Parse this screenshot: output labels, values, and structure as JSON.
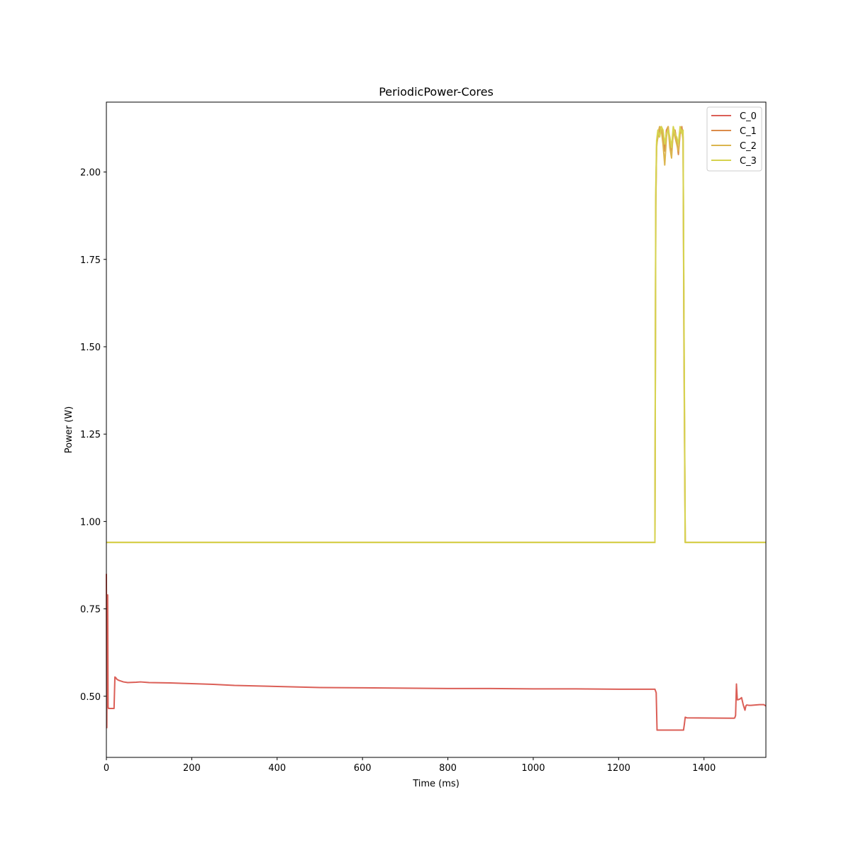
{
  "chart_data": {
    "type": "line",
    "title": "PeriodicPower-Cores",
    "xlabel": "Time (ms)",
    "ylabel": "Power (W)",
    "xlim": [
      0,
      1545
    ],
    "ylim": [
      0.325,
      2.2
    ],
    "xticks": [
      0,
      200,
      400,
      600,
      800,
      1000,
      1200,
      1400
    ],
    "yticks": [
      0.5,
      0.75,
      1.0,
      1.25,
      1.5,
      1.75,
      2.0
    ],
    "ytick_labels": [
      "0.50",
      "0.75",
      "1.00",
      "1.25",
      "1.50",
      "1.75",
      "2.00"
    ],
    "grid": false,
    "legend_position": "top-right",
    "series": [
      {
        "name": "C_0",
        "color": "#db5f57",
        "x": [
          0,
          1,
          2,
          3,
          4,
          5,
          6,
          8,
          10,
          12,
          16,
          18,
          20,
          22,
          25,
          30,
          40,
          50,
          70,
          80,
          100,
          150,
          200,
          250,
          300,
          400,
          500,
          600,
          700,
          800,
          900,
          1000,
          1100,
          1200,
          1285,
          1288,
          1290,
          1352,
          1354,
          1356,
          1360,
          1470,
          1472,
          1474,
          1476,
          1478,
          1480,
          1484,
          1488,
          1492,
          1496,
          1498,
          1500,
          1505,
          1510,
          1520,
          1530,
          1540,
          1545
        ],
        "y": [
          0.85,
          0.41,
          0.79,
          0.79,
          0.47,
          0.465,
          0.465,
          0.465,
          0.465,
          0.465,
          0.465,
          0.465,
          0.555,
          0.553,
          0.548,
          0.545,
          0.541,
          0.539,
          0.54,
          0.541,
          0.539,
          0.538,
          0.536,
          0.534,
          0.531,
          0.528,
          0.525,
          0.524,
          0.523,
          0.522,
          0.522,
          0.521,
          0.521,
          0.52,
          0.52,
          0.51,
          0.403,
          0.403,
          0.42,
          0.44,
          0.438,
          0.437,
          0.438,
          0.445,
          0.535,
          0.49,
          0.49,
          0.492,
          0.496,
          0.475,
          0.46,
          0.472,
          0.475,
          0.474,
          0.474,
          0.475,
          0.476,
          0.476,
          0.472
        ]
      },
      {
        "name": "C_1",
        "color": "#db8c4a",
        "x": [
          0,
          1285,
          1287,
          1289,
          1292,
          1296,
          1300,
          1304,
          1308,
          1312,
          1316,
          1320,
          1324,
          1328,
          1332,
          1336,
          1340,
          1344,
          1348,
          1351,
          1353,
          1356,
          1545
        ],
        "y": [
          0.94,
          0.94,
          1.9,
          2.08,
          2.1,
          2.12,
          2.13,
          2.11,
          2.06,
          2.12,
          2.13,
          2.09,
          2.06,
          2.11,
          2.12,
          2.09,
          2.05,
          2.11,
          2.13,
          2.1,
          1.5,
          0.94,
          0.94
        ]
      },
      {
        "name": "C_2",
        "color": "#dbb54e",
        "x": [
          0,
          1285,
          1287,
          1289,
          1292,
          1296,
          1300,
          1304,
          1308,
          1312,
          1316,
          1320,
          1324,
          1328,
          1332,
          1336,
          1340,
          1344,
          1348,
          1351,
          1353,
          1356,
          1545
        ],
        "y": [
          0.94,
          0.94,
          1.92,
          2.07,
          2.11,
          2.13,
          2.12,
          2.08,
          2.02,
          2.1,
          2.13,
          2.07,
          2.04,
          2.12,
          2.1,
          2.08,
          2.06,
          2.12,
          2.12,
          2.09,
          1.55,
          0.94,
          0.94
        ]
      },
      {
        "name": "C_3",
        "color": "#d6d34f",
        "x": [
          0,
          1285,
          1287,
          1289,
          1292,
          1296,
          1300,
          1304,
          1308,
          1312,
          1316,
          1320,
          1324,
          1328,
          1332,
          1336,
          1340,
          1344,
          1348,
          1351,
          1353,
          1356,
          1545
        ],
        "y": [
          0.94,
          0.94,
          1.95,
          2.09,
          2.12,
          2.1,
          2.13,
          2.12,
          2.08,
          2.11,
          2.12,
          2.1,
          2.07,
          2.13,
          2.11,
          2.1,
          2.08,
          2.13,
          2.11,
          2.12,
          1.6,
          0.94,
          0.94
        ]
      }
    ]
  }
}
